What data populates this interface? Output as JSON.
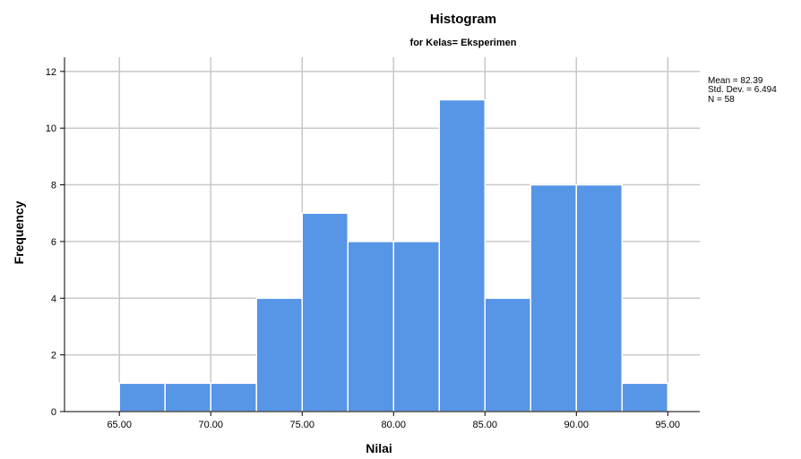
{
  "chart_data": {
    "type": "bar",
    "title": "Histogram",
    "subtitle": "for Kelas= Eksperimen",
    "xlabel": "Nilai",
    "ylabel": "Frequency",
    "bins": [
      {
        "start": 65.0,
        "end": 67.5,
        "value": 1
      },
      {
        "start": 67.5,
        "end": 70.0,
        "value": 1
      },
      {
        "start": 70.0,
        "end": 72.5,
        "value": 1
      },
      {
        "start": 72.5,
        "end": 75.0,
        "value": 4
      },
      {
        "start": 75.0,
        "end": 77.5,
        "value": 7
      },
      {
        "start": 77.5,
        "end": 80.0,
        "value": 6
      },
      {
        "start": 80.0,
        "end": 82.5,
        "value": 6
      },
      {
        "start": 82.5,
        "end": 85.0,
        "value": 11
      },
      {
        "start": 85.0,
        "end": 87.5,
        "value": 4
      },
      {
        "start": 87.5,
        "end": 90.0,
        "value": 8
      },
      {
        "start": 90.0,
        "end": 92.5,
        "value": 8
      },
      {
        "start": 92.5,
        "end": 95.0,
        "value": 1
      }
    ],
    "xticks": [
      65.0,
      70.0,
      75.0,
      80.0,
      85.0,
      90.0,
      95.0
    ],
    "xtick_labels": [
      "65.00",
      "70.00",
      "75.00",
      "80.00",
      "85.00",
      "90.00",
      "95.00"
    ],
    "yticks": [
      0,
      2,
      4,
      6,
      8,
      10,
      12
    ],
    "yticks_labels": [
      "0",
      "2",
      "4",
      "6",
      "8",
      "10",
      "12"
    ],
    "xlim": [
      62.0,
      96.75
    ],
    "ylim": [
      0,
      12.5
    ],
    "grid": true,
    "bar_color": "#5795e6",
    "stats": {
      "mean": "Mean = 82.39",
      "std_dev": "Std. Dev. = 6.494",
      "n": "N = 58"
    }
  }
}
